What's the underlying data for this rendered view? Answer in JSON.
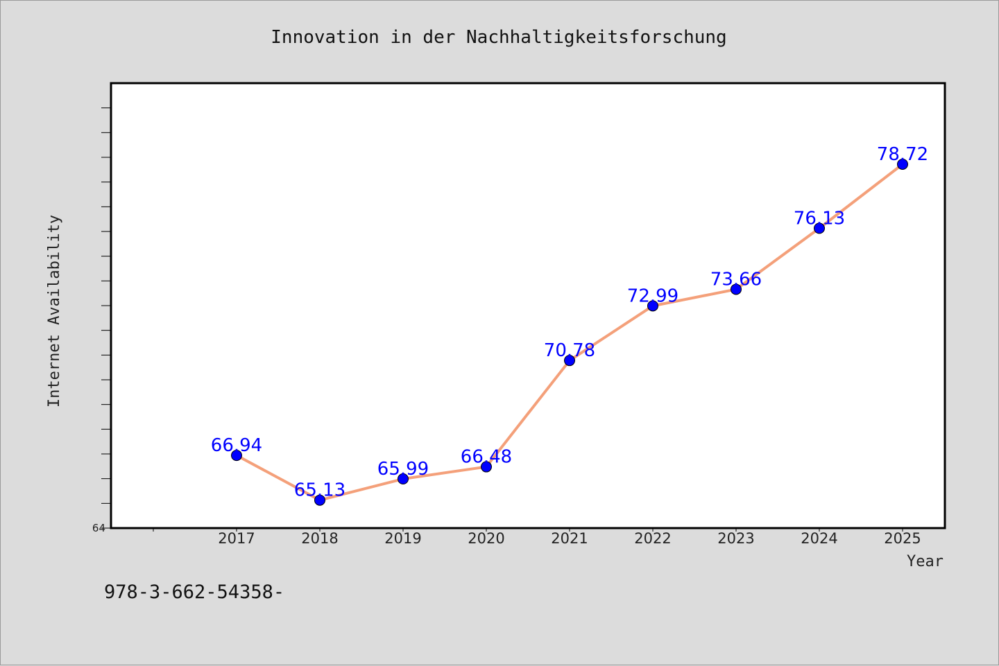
{
  "chart_data": {
    "type": "line",
    "title": "Innovation in der Nachhaltigkeitsforschung",
    "xlabel": "Year",
    "ylabel": "Internet Availability",
    "categories": [
      "2017",
      "2018",
      "2019",
      "2020",
      "2021",
      "2022",
      "2023",
      "2024",
      "2025"
    ],
    "series": [
      {
        "values": [
          66.94,
          65.13,
          65.99,
          66.48,
          70.78,
          72.99,
          73.66,
          76.13,
          78.72
        ],
        "data_labels": [
          "66.94",
          "65.13",
          "65.99",
          "66.48",
          "70.78",
          "72.99",
          "73.66",
          "76.13",
          "78.72"
        ],
        "line_color": "#f4a07a",
        "marker_color": "#0000ff"
      }
    ],
    "ylim": [
      64,
      82
    ],
    "y_tick_label": "64",
    "grid": false,
    "legend": "none"
  },
  "footnote": "978-3-662-54358-",
  "colors": {
    "background": "#dcdcdc",
    "plot_background": "#ffffff",
    "line": "#f4a07a",
    "marker": "#0000ff",
    "data_label": "#0000ff"
  }
}
